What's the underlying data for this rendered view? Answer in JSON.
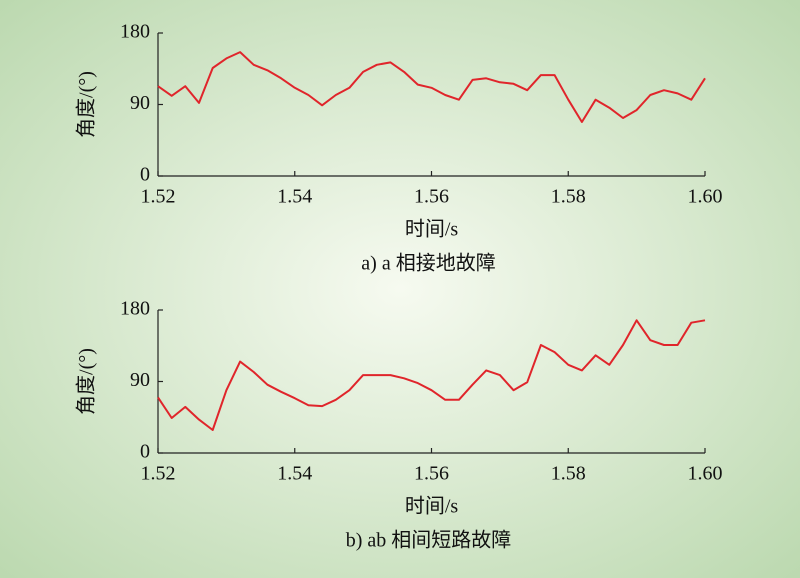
{
  "chart_data": [
    {
      "type": "line",
      "caption": "a) a 相接地故障",
      "xlabel": "时间/s",
      "ylabel": "角度/(°)",
      "x": [
        1.52,
        1.522,
        1.524,
        1.526,
        1.528,
        1.53,
        1.532,
        1.534,
        1.536,
        1.538,
        1.54,
        1.542,
        1.544,
        1.546,
        1.548,
        1.55,
        1.552,
        1.554,
        1.556,
        1.558,
        1.56,
        1.562,
        1.564,
        1.566,
        1.568,
        1.57,
        1.572,
        1.574,
        1.576,
        1.578,
        1.58,
        1.582,
        1.584,
        1.586,
        1.588,
        1.59,
        1.592,
        1.594,
        1.596,
        1.598,
        1.6
      ],
      "series": [
        {
          "color": "#e0252b",
          "values": [
            113,
            101,
            113,
            92,
            136,
            148,
            156,
            140,
            133,
            123,
            111,
            102,
            89,
            102,
            111,
            131,
            140,
            143,
            131,
            115,
            111,
            102,
            96,
            121,
            123,
            118,
            116,
            108,
            127,
            127,
            96,
            68,
            96,
            86,
            73,
            83,
            102,
            108,
            104,
            96,
            123
          ]
        }
      ],
      "xlim": [
        1.52,
        1.6
      ],
      "xticks": [
        1.52,
        1.54,
        1.56,
        1.58,
        {
          "value": 1.6,
          "label": "1.60"
        }
      ],
      "ylim": [
        0,
        180
      ],
      "yticks": [
        0,
        90,
        180
      ]
    },
    {
      "type": "line",
      "caption": "b) ab 相间短路故障",
      "xlabel": "时间/s",
      "ylabel": "角度/(°)",
      "x": [
        1.52,
        1.522,
        1.524,
        1.526,
        1.528,
        1.53,
        1.532,
        1.534,
        1.536,
        1.538,
        1.54,
        1.542,
        1.544,
        1.546,
        1.548,
        1.55,
        1.552,
        1.554,
        1.556,
        1.558,
        1.56,
        1.562,
        1.564,
        1.566,
        1.568,
        1.57,
        1.572,
        1.574,
        1.576,
        1.578,
        1.58,
        1.582,
        1.584,
        1.586,
        1.588,
        1.59,
        1.592,
        1.594,
        1.596,
        1.598,
        1.6
      ],
      "series": [
        {
          "color": "#e0252b",
          "values": [
            70,
            44,
            58,
            42,
            29,
            79,
            115,
            102,
            86,
            77,
            69,
            60,
            59,
            67,
            79,
            98,
            98,
            98,
            94,
            88,
            79,
            67,
            67,
            86,
            104,
            98,
            79,
            89,
            136,
            127,
            111,
            104,
            123,
            111,
            136,
            167,
            142,
            136,
            136,
            164,
            167
          ]
        }
      ],
      "xlim": [
        1.52,
        1.6
      ],
      "xticks": [
        1.52,
        1.54,
        1.56,
        1.58,
        {
          "value": 1.6,
          "label": "1.60"
        }
      ],
      "ylim": [
        0,
        180
      ],
      "yticks": [
        0,
        90,
        180
      ]
    }
  ]
}
